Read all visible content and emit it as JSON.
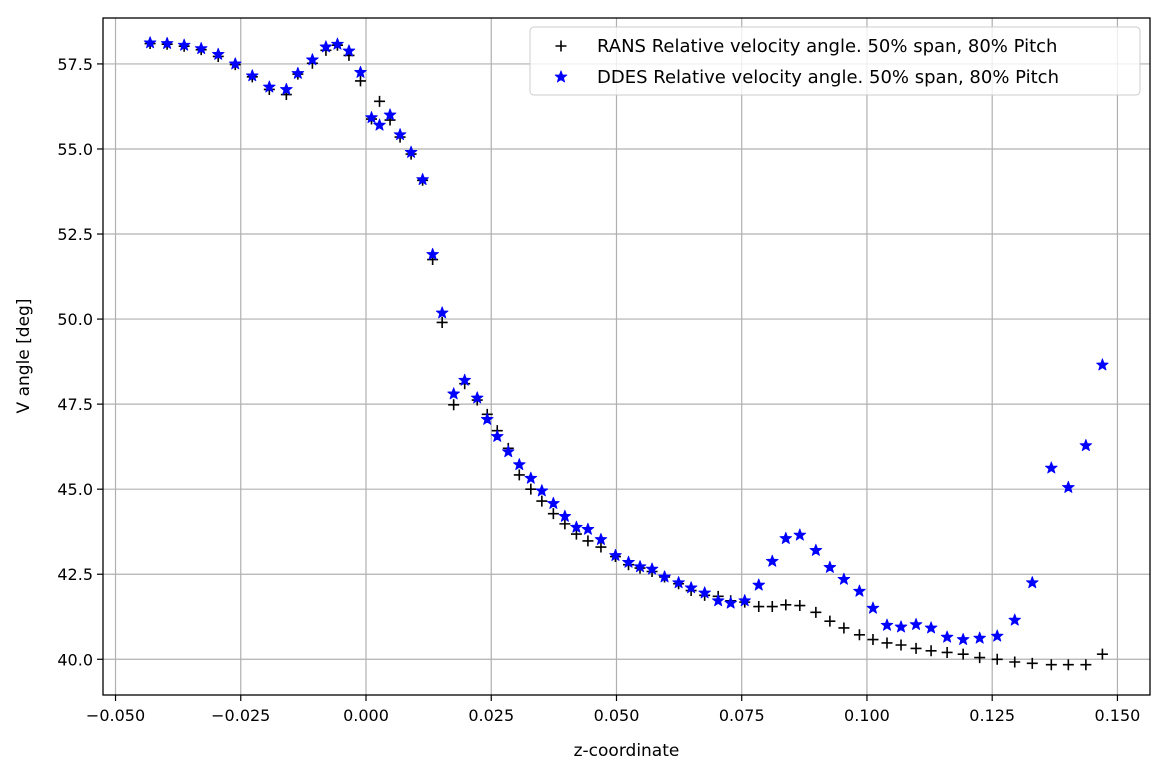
{
  "chart_data": {
    "type": "scatter",
    "xlabel": "z-coordinate",
    "ylabel": "V angle [deg]",
    "xlim": [
      -0.0525,
      0.1565
    ],
    "ylim": [
      38.95,
      58.85
    ],
    "x_ticks": [
      -0.05,
      -0.025,
      0.0,
      0.025,
      0.05,
      0.075,
      0.1,
      0.125,
      0.15
    ],
    "x_tick_labels": [
      "−0.050",
      "−0.025",
      "0.000",
      "0.025",
      "0.050",
      "0.075",
      "0.100",
      "0.125",
      "0.150"
    ],
    "y_ticks": [
      40.0,
      42.5,
      45.0,
      47.5,
      50.0,
      52.5,
      55.0,
      57.5
    ],
    "y_tick_labels": [
      "40.0",
      "42.5",
      "45.0",
      "47.5",
      "50.0",
      "52.5",
      "55.0",
      "57.5"
    ],
    "grid": true,
    "legend_position": "top-right",
    "series": [
      {
        "name": "RANS Relative velocity angle. 50% span, 80% Pitch",
        "marker": "plus",
        "color": "#000000",
        "points": [
          [
            -0.0431,
            58.1
          ],
          [
            -0.0397,
            58.08
          ],
          [
            -0.0363,
            58.02
          ],
          [
            -0.0329,
            57.92
          ],
          [
            -0.0295,
            57.72
          ],
          [
            -0.0261,
            57.48
          ],
          [
            -0.0227,
            57.12
          ],
          [
            -0.0193,
            56.75
          ],
          [
            -0.0159,
            56.6
          ],
          [
            -0.0136,
            57.2
          ],
          [
            -0.0107,
            57.52
          ],
          [
            -0.008,
            57.9
          ],
          [
            -0.0057,
            58.05
          ],
          [
            -0.0034,
            57.75
          ],
          [
            -0.0011,
            57.0
          ],
          [
            0.0011,
            55.88
          ],
          [
            0.0027,
            56.4
          ],
          [
            0.0048,
            55.85
          ],
          [
            0.0068,
            55.35
          ],
          [
            0.009,
            54.85
          ],
          [
            0.0113,
            54.08
          ],
          [
            0.0133,
            51.75
          ],
          [
            0.0152,
            49.9
          ],
          [
            0.0175,
            47.48
          ],
          [
            0.0197,
            48.1
          ],
          [
            0.0222,
            47.62
          ],
          [
            0.0242,
            47.2
          ],
          [
            0.0262,
            46.72
          ],
          [
            0.0284,
            46.2
          ],
          [
            0.0306,
            45.42
          ],
          [
            0.0329,
            45.0
          ],
          [
            0.0351,
            44.65
          ],
          [
            0.0374,
            44.28
          ],
          [
            0.0397,
            43.98
          ],
          [
            0.042,
            43.68
          ],
          [
            0.0443,
            43.48
          ],
          [
            0.0469,
            43.3
          ],
          [
            0.0498,
            43.02
          ],
          [
            0.0524,
            42.78
          ],
          [
            0.0547,
            42.68
          ],
          [
            0.0571,
            42.58
          ],
          [
            0.0596,
            42.42
          ],
          [
            0.0624,
            42.22
          ],
          [
            0.0649,
            42.02
          ],
          [
            0.0676,
            41.88
          ],
          [
            0.0703,
            41.85
          ],
          [
            0.0728,
            41.72
          ],
          [
            0.0756,
            41.68
          ],
          [
            0.0784,
            41.55
          ],
          [
            0.0811,
            41.55
          ],
          [
            0.0838,
            41.6
          ],
          [
            0.0866,
            41.58
          ],
          [
            0.0898,
            41.38
          ],
          [
            0.0926,
            41.12
          ],
          [
            0.0954,
            40.92
          ],
          [
            0.0985,
            40.72
          ],
          [
            0.1012,
            40.58
          ],
          [
            0.104,
            40.48
          ],
          [
            0.1068,
            40.42
          ],
          [
            0.1098,
            40.32
          ],
          [
            0.1128,
            40.25
          ],
          [
            0.116,
            40.2
          ],
          [
            0.1192,
            40.15
          ],
          [
            0.1225,
            40.05
          ],
          [
            0.126,
            40.0
          ],
          [
            0.1295,
            39.92
          ],
          [
            0.133,
            39.88
          ],
          [
            0.1368,
            39.84
          ],
          [
            0.1402,
            39.84
          ],
          [
            0.1437,
            39.84
          ],
          [
            0.147,
            40.15
          ]
        ]
      },
      {
        "name": "DDES Relative velocity angle. 50% span, 80% Pitch",
        "marker": "star",
        "color": "#0000ff",
        "points": [
          [
            -0.0431,
            58.12
          ],
          [
            -0.0397,
            58.1
          ],
          [
            -0.0363,
            58.05
          ],
          [
            -0.0329,
            57.95
          ],
          [
            -0.0295,
            57.78
          ],
          [
            -0.0261,
            57.5
          ],
          [
            -0.0227,
            57.15
          ],
          [
            -0.0193,
            56.82
          ],
          [
            -0.0159,
            56.75
          ],
          [
            -0.0136,
            57.22
          ],
          [
            -0.0107,
            57.62
          ],
          [
            -0.008,
            58.0
          ],
          [
            -0.0057,
            58.08
          ],
          [
            -0.0034,
            57.88
          ],
          [
            -0.0011,
            57.25
          ],
          [
            0.0011,
            55.92
          ],
          [
            0.0027,
            55.7
          ],
          [
            0.0048,
            56.0
          ],
          [
            0.0068,
            55.42
          ],
          [
            0.009,
            54.9
          ],
          [
            0.0113,
            54.1
          ],
          [
            0.0133,
            51.9
          ],
          [
            0.0152,
            50.18
          ],
          [
            0.0175,
            47.8
          ],
          [
            0.0197,
            48.2
          ],
          [
            0.0222,
            47.68
          ],
          [
            0.0242,
            47.05
          ],
          [
            0.0262,
            46.55
          ],
          [
            0.0284,
            46.1
          ],
          [
            0.0306,
            45.72
          ],
          [
            0.0329,
            45.32
          ],
          [
            0.0351,
            44.95
          ],
          [
            0.0374,
            44.58
          ],
          [
            0.0397,
            44.2
          ],
          [
            0.042,
            43.88
          ],
          [
            0.0443,
            43.82
          ],
          [
            0.0469,
            43.52
          ],
          [
            0.0498,
            43.05
          ],
          [
            0.0524,
            42.85
          ],
          [
            0.0547,
            42.72
          ],
          [
            0.0571,
            42.65
          ],
          [
            0.0596,
            42.42
          ],
          [
            0.0624,
            42.25
          ],
          [
            0.0649,
            42.1
          ],
          [
            0.0676,
            41.95
          ],
          [
            0.0703,
            41.72
          ],
          [
            0.0728,
            41.65
          ],
          [
            0.0756,
            41.72
          ],
          [
            0.0784,
            42.18
          ],
          [
            0.0811,
            42.88
          ],
          [
            0.0838,
            43.55
          ],
          [
            0.0866,
            43.65
          ],
          [
            0.0898,
            43.2
          ],
          [
            0.0926,
            42.7
          ],
          [
            0.0954,
            42.35
          ],
          [
            0.0985,
            42.0
          ],
          [
            0.1012,
            41.5
          ],
          [
            0.104,
            41.0
          ],
          [
            0.1068,
            40.95
          ],
          [
            0.1098,
            41.02
          ],
          [
            0.1128,
            40.92
          ],
          [
            0.116,
            40.65
          ],
          [
            0.1192,
            40.58
          ],
          [
            0.1225,
            40.62
          ],
          [
            0.126,
            40.68
          ],
          [
            0.1295,
            41.15
          ],
          [
            0.133,
            42.25
          ],
          [
            0.1368,
            45.62
          ],
          [
            0.1402,
            45.05
          ],
          [
            0.1437,
            46.28
          ],
          [
            0.147,
            48.65
          ]
        ]
      }
    ]
  }
}
